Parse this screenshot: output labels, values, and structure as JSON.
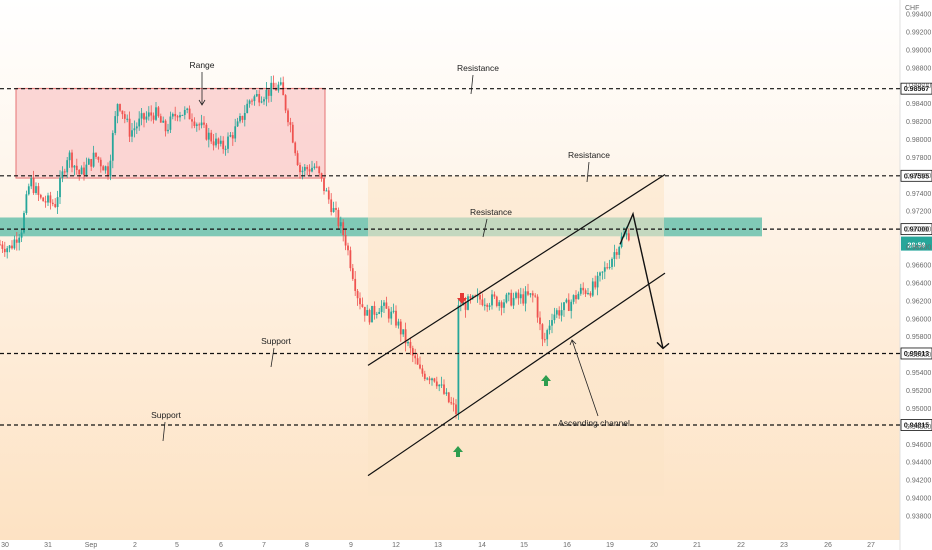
{
  "chart_data": {
    "type": "candlestick",
    "currency_label": "CHF",
    "x_ticks": [
      "30",
      "31",
      "Sep",
      "2",
      "5",
      "6",
      "7",
      "8",
      "9",
      "12",
      "13",
      "14",
      "15",
      "16",
      "19",
      "20",
      "21",
      "22",
      "23",
      "26",
      "27"
    ],
    "y_ticks": [
      "0.99400",
      "0.99200",
      "0.99000",
      "0.98800",
      "0.98600",
      "0.98400",
      "0.98200",
      "0.98000",
      "0.97800",
      "0.97600",
      "0.97400",
      "0.97200",
      "0.97000",
      "0.96800",
      "0.96600",
      "0.96400",
      "0.96200",
      "0.96000",
      "0.95800",
      "0.95600",
      "0.95400",
      "0.95200",
      "0.95000",
      "0.94800",
      "0.94600",
      "0.94400",
      "0.94200",
      "0.94000",
      "0.93800"
    ],
    "ylim": [
      0.9372,
      0.9958
    ],
    "price_levels": [
      {
        "value": 0.98567,
        "label": "0.98567"
      },
      {
        "value": 0.97595,
        "label": "0.97595"
      },
      {
        "value": 0.97,
        "label": "0.97000"
      },
      {
        "value": 0.95613,
        "label": "0.95613"
      },
      {
        "value": 0.94815,
        "label": "0.94815"
      }
    ],
    "countdown_label": "28:59",
    "current_price": 0.9685,
    "zone": {
      "label": "Range",
      "from": 0.9757,
      "to": 0.9857
    },
    "resistance_zone": {
      "from": 0.9692,
      "to": 0.9713
    },
    "annotations": [
      "Range",
      "Resistance",
      "Resistance",
      "Resistance",
      "Support",
      "Support",
      "Ascending channel"
    ],
    "colors": {
      "up": "#26a69a",
      "down": "#ef5350",
      "range_fill": "#f9c9c9",
      "range_border": "#e57373",
      "zone_fill": "#72c4b0",
      "channel_fill": "#fbe3c6",
      "bg_top": "#ffffff",
      "bg_bottom": "#fde2c3"
    }
  }
}
